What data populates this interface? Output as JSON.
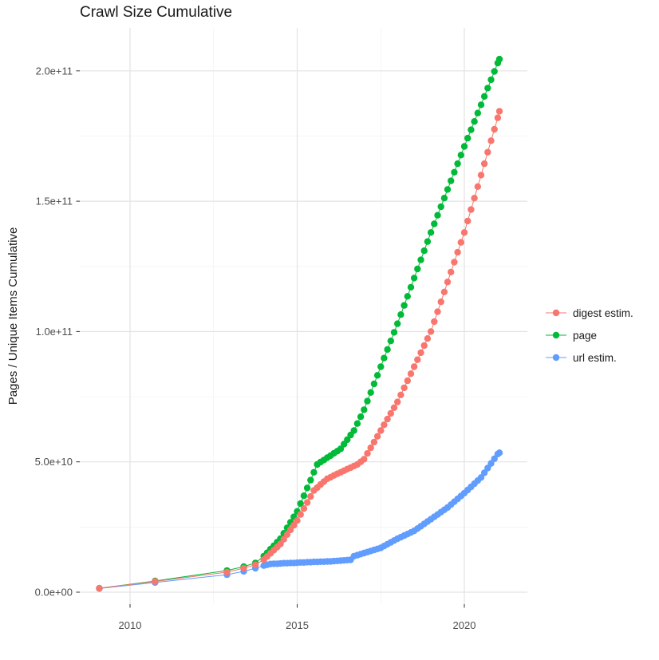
{
  "title": "Crawl Size Cumulative",
  "y_axis_label": "Pages / Unique Items Cumulative",
  "colors": {
    "background": "#ffffff",
    "grid_major": "#e3e3e3",
    "grid_minor": "#f0f0f0",
    "tick_mark": "#333333",
    "tick_label": "#4d4d4d",
    "text": "#1a1a1a"
  },
  "chart_data": {
    "type": "scatter",
    "title": "Crawl Size Cumulative",
    "xlabel": "",
    "ylabel": "Pages / Unique Items Cumulative",
    "legend_position": "right",
    "grid": true,
    "value_unit": 10000000000,
    "x_axis": {
      "range": [
        2008.5,
        2021.9
      ],
      "ticks": [
        {
          "value": 2010,
          "label": "2010"
        },
        {
          "value": 2015,
          "label": "2015"
        },
        {
          "value": 2020,
          "label": "2020"
        }
      ],
      "minor": [
        2012.5,
        2017.5
      ]
    },
    "y_axis": {
      "range": [
        -0.45,
        22.1
      ],
      "ticks": [
        {
          "value": 0,
          "label": "0.0e+00"
        },
        {
          "value": 5,
          "label": "5.0e+10"
        },
        {
          "value": 10,
          "label": "1.0e+11"
        },
        {
          "value": 15,
          "label": "1.5e+11"
        },
        {
          "value": 20,
          "label": "2.0e+11"
        }
      ],
      "minor": [
        2.5,
        7.5,
        12.5,
        17.5
      ]
    },
    "series": [
      {
        "label": "digest estim.",
        "color": "#F8766D",
        "points": [
          [
            2009.08,
            0.15
          ],
          [
            2010.75,
            0.41
          ],
          [
            2012.9,
            0.77
          ],
          [
            2013.4,
            0.92
          ],
          [
            2013.75,
            1.05
          ],
          [
            2014.0,
            1.25
          ],
          [
            2014.1,
            1.37
          ],
          [
            2014.2,
            1.49
          ],
          [
            2014.3,
            1.61
          ],
          [
            2014.4,
            1.73
          ],
          [
            2014.5,
            1.85
          ],
          [
            2014.6,
            2.03
          ],
          [
            2014.7,
            2.21
          ],
          [
            2014.8,
            2.39
          ],
          [
            2014.9,
            2.57
          ],
          [
            2015.0,
            2.75
          ],
          [
            2015.1,
            2.98
          ],
          [
            2015.2,
            3.21
          ],
          [
            2015.3,
            3.44
          ],
          [
            2015.4,
            3.67
          ],
          [
            2015.5,
            3.9
          ],
          [
            2015.6,
            4.01
          ],
          [
            2015.7,
            4.13
          ],
          [
            2015.8,
            4.24
          ],
          [
            2015.9,
            4.35
          ],
          [
            2016.0,
            4.41
          ],
          [
            2016.1,
            4.48
          ],
          [
            2016.2,
            4.54
          ],
          [
            2016.3,
            4.6
          ],
          [
            2016.4,
            4.66
          ],
          [
            2016.5,
            4.72
          ],
          [
            2016.6,
            4.78
          ],
          [
            2016.7,
            4.84
          ],
          [
            2016.8,
            4.9
          ],
          [
            2016.9,
            5.0
          ],
          [
            2017.0,
            5.1
          ],
          [
            2017.1,
            5.32
          ],
          [
            2017.2,
            5.54
          ],
          [
            2017.3,
            5.76
          ],
          [
            2017.4,
            5.98
          ],
          [
            2017.5,
            6.2
          ],
          [
            2017.6,
            6.42
          ],
          [
            2017.7,
            6.64
          ],
          [
            2017.8,
            6.86
          ],
          [
            2017.9,
            7.08
          ],
          [
            2018.0,
            7.3
          ],
          [
            2018.1,
            7.57
          ],
          [
            2018.2,
            7.84
          ],
          [
            2018.3,
            8.11
          ],
          [
            2018.4,
            8.38
          ],
          [
            2018.5,
            8.65
          ],
          [
            2018.6,
            8.92
          ],
          [
            2018.7,
            9.19
          ],
          [
            2018.8,
            9.46
          ],
          [
            2018.9,
            9.73
          ],
          [
            2019.0,
            10.0
          ],
          [
            2019.1,
            10.38
          ],
          [
            2019.2,
            10.76
          ],
          [
            2019.3,
            11.14
          ],
          [
            2019.4,
            11.52
          ],
          [
            2019.5,
            11.9
          ],
          [
            2019.6,
            12.28
          ],
          [
            2019.7,
            12.66
          ],
          [
            2019.8,
            13.04
          ],
          [
            2019.9,
            13.42
          ],
          [
            2020.0,
            13.8
          ],
          [
            2020.1,
            14.24
          ],
          [
            2020.2,
            14.68
          ],
          [
            2020.3,
            15.12
          ],
          [
            2020.4,
            15.56
          ],
          [
            2020.5,
            16.0
          ],
          [
            2020.6,
            16.44
          ],
          [
            2020.7,
            16.88
          ],
          [
            2020.8,
            17.32
          ],
          [
            2020.9,
            17.76
          ],
          [
            2021.0,
            18.2
          ],
          [
            2021.05,
            18.45
          ]
        ]
      },
      {
        "label": "page",
        "color": "#00BA38",
        "points": [
          [
            2009.08,
            0.15
          ],
          [
            2010.75,
            0.43
          ],
          [
            2012.9,
            0.83
          ],
          [
            2013.4,
            0.98
          ],
          [
            2013.75,
            1.12
          ],
          [
            2014.0,
            1.38
          ],
          [
            2014.1,
            1.51
          ],
          [
            2014.2,
            1.65
          ],
          [
            2014.3,
            1.78
          ],
          [
            2014.4,
            1.92
          ],
          [
            2014.5,
            2.05
          ],
          [
            2014.6,
            2.26
          ],
          [
            2014.7,
            2.47
          ],
          [
            2014.8,
            2.68
          ],
          [
            2014.9,
            2.89
          ],
          [
            2015.0,
            3.1
          ],
          [
            2015.1,
            3.4
          ],
          [
            2015.2,
            3.7
          ],
          [
            2015.3,
            4.0
          ],
          [
            2015.4,
            4.3
          ],
          [
            2015.5,
            4.6
          ],
          [
            2015.6,
            4.9
          ],
          [
            2015.7,
            4.99
          ],
          [
            2015.8,
            5.07
          ],
          [
            2015.9,
            5.16
          ],
          [
            2016.0,
            5.24
          ],
          [
            2016.1,
            5.33
          ],
          [
            2016.2,
            5.41
          ],
          [
            2016.3,
            5.5
          ],
          [
            2016.4,
            5.68
          ],
          [
            2016.5,
            5.85
          ],
          [
            2016.6,
            6.03
          ],
          [
            2016.7,
            6.2
          ],
          [
            2016.8,
            6.47
          ],
          [
            2016.9,
            6.73
          ],
          [
            2017.0,
            7.0
          ],
          [
            2017.1,
            7.33
          ],
          [
            2017.2,
            7.66
          ],
          [
            2017.3,
            7.99
          ],
          [
            2017.4,
            8.32
          ],
          [
            2017.5,
            8.65
          ],
          [
            2017.6,
            8.98
          ],
          [
            2017.7,
            9.31
          ],
          [
            2017.8,
            9.64
          ],
          [
            2017.9,
            9.97
          ],
          [
            2018.0,
            10.3
          ],
          [
            2018.1,
            10.65
          ],
          [
            2018.2,
            11.0
          ],
          [
            2018.3,
            11.35
          ],
          [
            2018.4,
            11.7
          ],
          [
            2018.5,
            12.05
          ],
          [
            2018.6,
            12.4
          ],
          [
            2018.7,
            12.75
          ],
          [
            2018.8,
            13.1
          ],
          [
            2018.9,
            13.45
          ],
          [
            2019.0,
            13.8
          ],
          [
            2019.1,
            14.13
          ],
          [
            2019.2,
            14.46
          ],
          [
            2019.3,
            14.79
          ],
          [
            2019.4,
            15.12
          ],
          [
            2019.5,
            15.45
          ],
          [
            2019.6,
            15.78
          ],
          [
            2019.7,
            16.11
          ],
          [
            2019.8,
            16.44
          ],
          [
            2019.9,
            16.77
          ],
          [
            2020.0,
            17.1
          ],
          [
            2020.1,
            17.42
          ],
          [
            2020.2,
            17.74
          ],
          [
            2020.3,
            18.06
          ],
          [
            2020.4,
            18.38
          ],
          [
            2020.5,
            18.7
          ],
          [
            2020.6,
            19.02
          ],
          [
            2020.7,
            19.34
          ],
          [
            2020.8,
            19.66
          ],
          [
            2020.9,
            19.98
          ],
          [
            2021.0,
            20.3
          ],
          [
            2021.05,
            20.45
          ]
        ]
      },
      {
        "label": "url estim.",
        "color": "#619CFF",
        "points": [
          [
            2009.08,
            0.14
          ],
          [
            2010.75,
            0.37
          ],
          [
            2012.9,
            0.67
          ],
          [
            2013.4,
            0.8
          ],
          [
            2013.75,
            0.92
          ],
          [
            2014.0,
            1.02
          ],
          [
            2014.1,
            1.05
          ],
          [
            2014.2,
            1.08
          ],
          [
            2014.3,
            1.09
          ],
          [
            2014.4,
            1.09
          ],
          [
            2014.5,
            1.1
          ],
          [
            2014.6,
            1.11
          ],
          [
            2014.7,
            1.11
          ],
          [
            2014.8,
            1.12
          ],
          [
            2014.9,
            1.12
          ],
          [
            2015.0,
            1.13
          ],
          [
            2015.1,
            1.14
          ],
          [
            2015.2,
            1.14
          ],
          [
            2015.3,
            1.15
          ],
          [
            2015.4,
            1.15
          ],
          [
            2015.5,
            1.16
          ],
          [
            2015.6,
            1.16
          ],
          [
            2015.7,
            1.17
          ],
          [
            2015.8,
            1.17
          ],
          [
            2015.9,
            1.18
          ],
          [
            2016.0,
            1.18
          ],
          [
            2016.1,
            1.19
          ],
          [
            2016.2,
            1.2
          ],
          [
            2016.3,
            1.21
          ],
          [
            2016.4,
            1.22
          ],
          [
            2016.5,
            1.23
          ],
          [
            2016.6,
            1.24
          ],
          [
            2016.7,
            1.38
          ],
          [
            2016.8,
            1.42
          ],
          [
            2016.9,
            1.46
          ],
          [
            2017.0,
            1.5
          ],
          [
            2017.1,
            1.54
          ],
          [
            2017.2,
            1.58
          ],
          [
            2017.3,
            1.62
          ],
          [
            2017.4,
            1.66
          ],
          [
            2017.5,
            1.7
          ],
          [
            2017.6,
            1.77
          ],
          [
            2017.7,
            1.84
          ],
          [
            2017.8,
            1.91
          ],
          [
            2017.9,
            1.98
          ],
          [
            2018.0,
            2.05
          ],
          [
            2018.1,
            2.11
          ],
          [
            2018.2,
            2.17
          ],
          [
            2018.3,
            2.23
          ],
          [
            2018.4,
            2.29
          ],
          [
            2018.5,
            2.35
          ],
          [
            2018.6,
            2.44
          ],
          [
            2018.7,
            2.53
          ],
          [
            2018.8,
            2.62
          ],
          [
            2018.9,
            2.71
          ],
          [
            2019.0,
            2.8
          ],
          [
            2019.1,
            2.89
          ],
          [
            2019.2,
            2.98
          ],
          [
            2019.3,
            3.07
          ],
          [
            2019.4,
            3.16
          ],
          [
            2019.5,
            3.25
          ],
          [
            2019.6,
            3.36
          ],
          [
            2019.7,
            3.47
          ],
          [
            2019.8,
            3.58
          ],
          [
            2019.9,
            3.69
          ],
          [
            2020.0,
            3.8
          ],
          [
            2020.1,
            3.92
          ],
          [
            2020.2,
            4.04
          ],
          [
            2020.3,
            4.16
          ],
          [
            2020.4,
            4.28
          ],
          [
            2020.5,
            4.4
          ],
          [
            2020.6,
            4.58
          ],
          [
            2020.7,
            4.76
          ],
          [
            2020.8,
            4.94
          ],
          [
            2020.9,
            5.12
          ],
          [
            2021.0,
            5.3
          ],
          [
            2021.05,
            5.35
          ]
        ]
      }
    ]
  }
}
